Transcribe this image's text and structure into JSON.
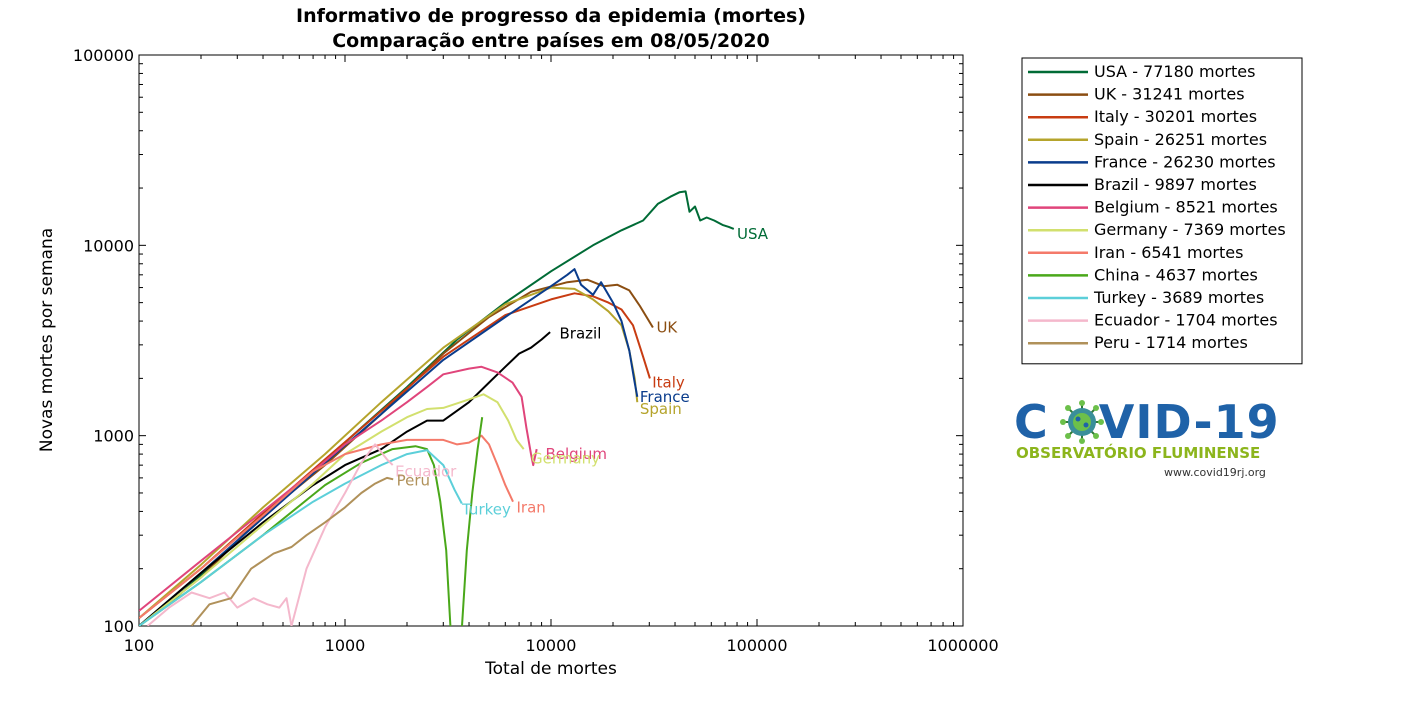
{
  "chart_data": {
    "type": "line",
    "title": "Informativo de progresso da epidemia (mortes)",
    "subtitle": "Comparação entre países em 08/05/2020",
    "xlabel": "Total de mortes",
    "ylabel": "Novas mortes por semana",
    "xscale": "log",
    "yscale": "log",
    "xlim": [
      100,
      1000000
    ],
    "ylim": [
      100,
      100000
    ],
    "xticks": [
      {
        "value": 100,
        "label": "100"
      },
      {
        "value": 1000,
        "label": "1000"
      },
      {
        "value": 10000,
        "label": "10000"
      },
      {
        "value": 100000,
        "label": "100000"
      },
      {
        "value": 1000000,
        "label": "1000000"
      }
    ],
    "yticks": [
      {
        "value": 100,
        "label": "100"
      },
      {
        "value": 1000,
        "label": "1000"
      },
      {
        "value": 10000,
        "label": "10000"
      },
      {
        "value": 100000,
        "label": "100000"
      }
    ],
    "grid": false,
    "legend_position": "right",
    "series": [
      {
        "name": "USA - 77180 mortes",
        "label": "USA",
        "color": "#006b36",
        "points": [
          [
            100,
            100
          ],
          [
            150,
            140
          ],
          [
            250,
            230
          ],
          [
            400,
            380
          ],
          [
            700,
            650
          ],
          [
            1200,
            1100
          ],
          [
            2000,
            1800
          ],
          [
            3500,
            3200
          ],
          [
            6000,
            5000
          ],
          [
            10000,
            7300
          ],
          [
            16000,
            10000
          ],
          [
            22000,
            12000
          ],
          [
            28000,
            13500
          ],
          [
            33000,
            16500
          ],
          [
            38000,
            18000
          ],
          [
            42000,
            19000
          ],
          [
            45000,
            19200
          ],
          [
            47000,
            15000
          ],
          [
            50000,
            16000
          ],
          [
            53000,
            13500
          ],
          [
            57000,
            14000
          ],
          [
            62000,
            13500
          ],
          [
            68000,
            12800
          ],
          [
            73000,
            12500
          ],
          [
            77180,
            12200
          ]
        ]
      },
      {
        "name": "UK - 31241 mortes",
        "label": "UK",
        "color": "#8b4e12",
        "points": [
          [
            100,
            100
          ],
          [
            200,
            180
          ],
          [
            400,
            380
          ],
          [
            800,
            700
          ],
          [
            1500,
            1300
          ],
          [
            3000,
            2700
          ],
          [
            5000,
            4200
          ],
          [
            8000,
            5700
          ],
          [
            12000,
            6400
          ],
          [
            15000,
            6600
          ],
          [
            18000,
            6100
          ],
          [
            21000,
            6200
          ],
          [
            24000,
            5800
          ],
          [
            27000,
            4800
          ],
          [
            31241,
            3700
          ]
        ]
      },
      {
        "name": "Italy - 30201 mortes",
        "label": "Italy",
        "color": "#c83c12",
        "points": [
          [
            100,
            110
          ],
          [
            200,
            200
          ],
          [
            400,
            390
          ],
          [
            800,
            750
          ],
          [
            1500,
            1350
          ],
          [
            3000,
            2600
          ],
          [
            6000,
            4300
          ],
          [
            10000,
            5200
          ],
          [
            13000,
            5600
          ],
          [
            16000,
            5400
          ],
          [
            19000,
            5000
          ],
          [
            22000,
            4600
          ],
          [
            25000,
            3800
          ],
          [
            28000,
            2600
          ],
          [
            30201,
            2000
          ]
        ]
      },
      {
        "name": "Spain - 26251 mortes",
        "label": "Spain",
        "color": "#b5a42c",
        "points": [
          [
            100,
            110
          ],
          [
            200,
            210
          ],
          [
            400,
            420
          ],
          [
            800,
            800
          ],
          [
            1500,
            1500
          ],
          [
            3000,
            2900
          ],
          [
            6000,
            4900
          ],
          [
            10000,
            6000
          ],
          [
            13000,
            5900
          ],
          [
            16000,
            5200
          ],
          [
            19000,
            4500
          ],
          [
            22000,
            3800
          ],
          [
            24000,
            2800
          ],
          [
            25500,
            2000
          ],
          [
            26251,
            1500
          ]
        ]
      },
      {
        "name": "France - 26230 mortes",
        "label": "France",
        "color": "#0a3c8c",
        "points": [
          [
            100,
            100
          ],
          [
            200,
            190
          ],
          [
            400,
            370
          ],
          [
            800,
            720
          ],
          [
            1500,
            1300
          ],
          [
            3000,
            2500
          ],
          [
            6000,
            4200
          ],
          [
            10000,
            6100
          ],
          [
            12000,
            7000
          ],
          [
            13000,
            7500
          ],
          [
            14000,
            6200
          ],
          [
            16000,
            5500
          ],
          [
            17500,
            6400
          ],
          [
            20000,
            5000
          ],
          [
            22000,
            4000
          ],
          [
            24000,
            2800
          ],
          [
            25500,
            1900
          ],
          [
            26230,
            1600
          ]
        ]
      },
      {
        "name": "Brazil - 9897 mortes",
        "label": "Brazil",
        "color": "#000000",
        "points": [
          [
            100,
            100
          ],
          [
            200,
            190
          ],
          [
            400,
            350
          ],
          [
            700,
            550
          ],
          [
            1000,
            700
          ],
          [
            1500,
            850
          ],
          [
            2000,
            1050
          ],
          [
            2500,
            1200
          ],
          [
            3000,
            1200
          ],
          [
            4000,
            1500
          ],
          [
            5000,
            1900
          ],
          [
            6000,
            2300
          ],
          [
            7000,
            2700
          ],
          [
            8000,
            2900
          ],
          [
            9000,
            3200
          ],
          [
            9897,
            3500
          ]
        ]
      },
      {
        "name": "Belgium - 8521 mortes",
        "label": "Belgium",
        "color": "#e0457b",
        "points": [
          [
            100,
            120
          ],
          [
            200,
            220
          ],
          [
            400,
            400
          ],
          [
            700,
            650
          ],
          [
            1000,
            900
          ],
          [
            1500,
            1200
          ],
          [
            2000,
            1500
          ],
          [
            2500,
            1800
          ],
          [
            3000,
            2100
          ],
          [
            4000,
            2250
          ],
          [
            4600,
            2300
          ],
          [
            5500,
            2150
          ],
          [
            6500,
            1900
          ],
          [
            7200,
            1600
          ],
          [
            7600,
            1100
          ],
          [
            8000,
            800
          ],
          [
            8200,
            700
          ],
          [
            8521,
            850
          ]
        ]
      },
      {
        "name": "Germany - 7369 mortes",
        "label": "Germany",
        "color": "#d2e06e",
        "points": [
          [
            100,
            100
          ],
          [
            200,
            180
          ],
          [
            400,
            340
          ],
          [
            700,
            560
          ],
          [
            1000,
            800
          ],
          [
            1500,
            1050
          ],
          [
            2000,
            1250
          ],
          [
            2500,
            1380
          ],
          [
            3000,
            1400
          ],
          [
            4000,
            1550
          ],
          [
            4700,
            1650
          ],
          [
            5500,
            1500
          ],
          [
            6200,
            1200
          ],
          [
            6800,
            950
          ],
          [
            7369,
            850
          ]
        ]
      },
      {
        "name": "Iran - 6541 mortes",
        "label": "Iran",
        "color": "#f47a6a",
        "points": [
          [
            100,
            110
          ],
          [
            200,
            200
          ],
          [
            400,
            380
          ],
          [
            700,
            650
          ],
          [
            1000,
            800
          ],
          [
            1500,
            900
          ],
          [
            2000,
            950
          ],
          [
            2500,
            950
          ],
          [
            3000,
            950
          ],
          [
            3500,
            900
          ],
          [
            4000,
            920
          ],
          [
            4600,
            1000
          ],
          [
            5000,
            900
          ],
          [
            5500,
            700
          ],
          [
            6000,
            550
          ],
          [
            6541,
            450
          ]
        ]
      },
      {
        "name": "China - 4637 mortes",
        "label": "China",
        "color": "#4aa81a",
        "points": [
          [
            100,
            100
          ],
          [
            200,
            170
          ],
          [
            400,
            300
          ],
          [
            800,
            550
          ],
          [
            1200,
            720
          ],
          [
            1700,
            850
          ],
          [
            2200,
            880
          ],
          [
            2500,
            850
          ],
          [
            2700,
            700
          ],
          [
            2900,
            450
          ],
          [
            3100,
            250
          ],
          [
            3250,
            100
          ]
        ],
        "points2": [
          [
            3700,
            100
          ],
          [
            3900,
            250
          ],
          [
            4150,
            500
          ],
          [
            4400,
            850
          ],
          [
            4637,
            1250
          ]
        ]
      },
      {
        "name": "Turkey - 3689 mortes",
        "label": "Turkey",
        "color": "#5ccfd9",
        "points": [
          [
            100,
            100
          ],
          [
            200,
            170
          ],
          [
            400,
            300
          ],
          [
            700,
            450
          ],
          [
            1000,
            560
          ],
          [
            1500,
            700
          ],
          [
            2000,
            800
          ],
          [
            2500,
            840
          ],
          [
            3000,
            700
          ],
          [
            3400,
            520
          ],
          [
            3689,
            440
          ]
        ]
      },
      {
        "name": "Ecuador - 1704 mortes",
        "label": "Ecuador",
        "color": "#f4b8cc",
        "points": [
          [
            110,
            100
          ],
          [
            140,
            125
          ],
          [
            180,
            150
          ],
          [
            220,
            140
          ],
          [
            260,
            150
          ],
          [
            300,
            125
          ],
          [
            360,
            140
          ],
          [
            420,
            130
          ],
          [
            480,
            125
          ],
          [
            520,
            140
          ],
          [
            550,
            100
          ]
        ],
        "points2": [
          [
            550,
            100
          ],
          [
            650,
            200
          ],
          [
            800,
            330
          ],
          [
            1000,
            500
          ],
          [
            1200,
            720
          ],
          [
            1400,
            900
          ],
          [
            1600,
            750
          ],
          [
            1704,
            700
          ]
        ]
      },
      {
        "name": "Peru - 1714 mortes",
        "label": "Peru",
        "color": "#b0915a",
        "points": [
          [
            180,
            100
          ],
          [
            220,
            130
          ],
          [
            280,
            140
          ],
          [
            350,
            200
          ],
          [
            450,
            240
          ],
          [
            550,
            260
          ],
          [
            650,
            300
          ],
          [
            800,
            350
          ],
          [
            1000,
            420
          ],
          [
            1200,
            500
          ],
          [
            1400,
            560
          ],
          [
            1600,
            600
          ],
          [
            1714,
            590
          ]
        ]
      }
    ],
    "annotations": [
      {
        "text": "USA",
        "x": 80000,
        "y": 11500
      },
      {
        "text": "UK",
        "x": 32500,
        "y": 3700
      },
      {
        "text": "Italy",
        "x": 31000,
        "y": 1900
      },
      {
        "text": "France",
        "x": 27000,
        "y": 1600
      },
      {
        "text": "Spain",
        "x": 27000,
        "y": 1380
      },
      {
        "text": "Brazil",
        "x": 11000,
        "y": 3450
      },
      {
        "text": "Belgium",
        "x": 9400,
        "y": 800
      },
      {
        "text": "Germany",
        "x": 8000,
        "y": 760
      },
      {
        "text": "Iran",
        "x": 6800,
        "y": 420
      },
      {
        "text": "Turkey",
        "x": 3700,
        "y": 410
      },
      {
        "text": "Ecuador",
        "x": 1750,
        "y": 650
      },
      {
        "text": "Peru",
        "x": 1780,
        "y": 580
      }
    ]
  },
  "logo": {
    "title_left": "C",
    "title_right": "VID-19",
    "subtitle": "OBSERVATÓRIO FLUMINENSE",
    "url": "www.covid19rj.org"
  }
}
